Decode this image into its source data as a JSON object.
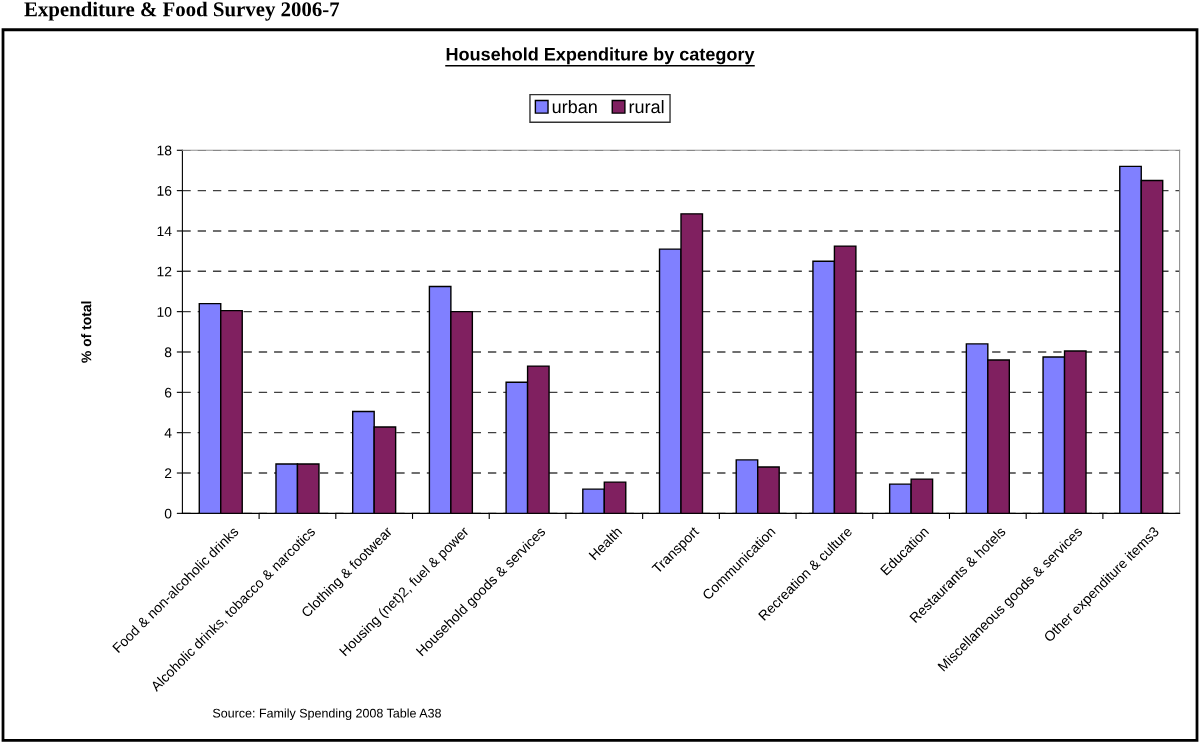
{
  "chart_data": {
    "type": "bar",
    "title": "Household Expenditure by category",
    "ylabel": "% of total",
    "annotations": [
      "Expenditure & Food Survey 2006-7",
      "Source: Family Spending 2008 Table A38"
    ],
    "categories": [
      "Food & non-alcoholic drinks",
      "Alcoholic drinks, tobacco & narcotics",
      "Clothing & footwear",
      "Housing (net)2, fuel & power",
      "Household goods & services",
      "Health",
      "Transport",
      "Communication",
      "Recreation & culture",
      "Education",
      "Restaurants & hotels",
      "Miscellaneous goods & services",
      "Other expenditure items3"
    ],
    "series": [
      {
        "name": "urban",
        "color": "#8080ff",
        "values": [
          10.4,
          2.45,
          5.05,
          11.25,
          6.5,
          1.2,
          13.1,
          2.65,
          12.5,
          1.45,
          8.4,
          7.75,
          17.2
        ]
      },
      {
        "name": "rural",
        "color": "#802060",
        "values": [
          10.05,
          2.45,
          4.28,
          10.0,
          7.3,
          1.55,
          14.85,
          2.3,
          13.25,
          1.7,
          7.6,
          8.05,
          16.5
        ]
      }
    ],
    "ylim": [
      0,
      18
    ],
    "yticks": [
      0,
      2,
      4,
      6,
      8,
      10,
      12,
      14,
      16,
      18
    ],
    "grid": "y",
    "legend": "top"
  }
}
